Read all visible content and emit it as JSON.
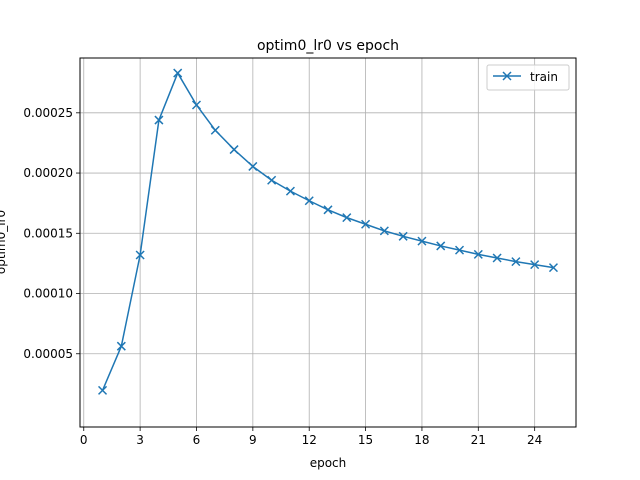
{
  "chart_data": {
    "type": "line",
    "title": "optim0_lr0 vs epoch",
    "xlabel": "epoch",
    "ylabel": "optim0_lr0",
    "xlim": [
      -0.2,
      26.2
    ],
    "ylim": [
      -1.08e-05,
      0.0002955
    ],
    "xticks": [
      0,
      3,
      6,
      9,
      12,
      15,
      18,
      21,
      24
    ],
    "yticks": [
      5e-05,
      0.0001,
      0.00015,
      0.0002,
      0.00025
    ],
    "ytick_labels": [
      "0.00005",
      "0.00010",
      "0.00015",
      "0.00020",
      "0.00025"
    ],
    "grid": true,
    "legend": {
      "position": "top-right",
      "entries": [
        "train"
      ]
    },
    "series": [
      {
        "name": "train",
        "color": "#1f77b4",
        "marker": "x",
        "x": [
          1,
          2,
          3,
          4,
          5,
          6,
          7,
          8,
          9,
          10,
          11,
          12,
          13,
          14,
          15,
          16,
          17,
          18,
          19,
          20,
          21,
          22,
          23,
          24,
          25
        ],
        "y": [
          1.96e-05,
          5.63e-05,
          0.000132,
          0.000244,
          0.000283,
          0.0002565,
          0.0002355,
          0.0002195,
          0.0002055,
          0.000194,
          0.000185,
          0.000177,
          0.0001695,
          0.000163,
          0.0001575,
          0.000152,
          0.0001475,
          0.0001435,
          0.0001395,
          0.000136,
          0.0001325,
          0.0001295,
          0.0001265,
          0.000124,
          0.0001215
        ]
      }
    ]
  }
}
